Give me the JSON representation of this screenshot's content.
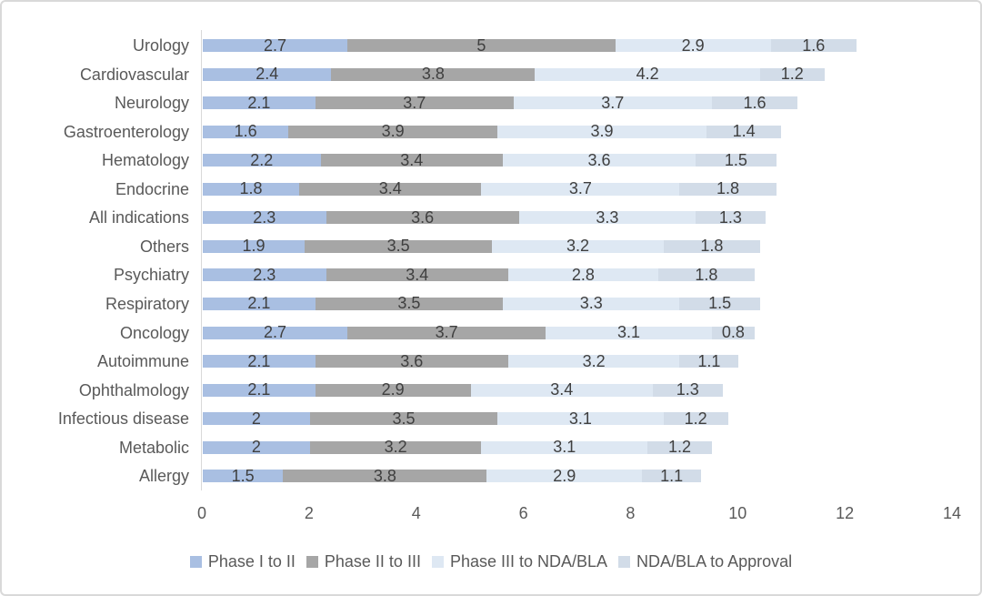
{
  "chart_data": {
    "type": "bar",
    "orientation": "horizontal",
    "stacked": true,
    "title": "",
    "xlabel": "",
    "ylabel": "",
    "xlim": [
      0,
      14
    ],
    "xticks": [
      0,
      2,
      4,
      6,
      8,
      10,
      12,
      14
    ],
    "grid": false,
    "legend_position": "bottom",
    "categories": [
      "Urology",
      "Cardiovascular",
      "Neurology",
      "Gastroenterology",
      "Hematology",
      "Endocrine",
      "All indications",
      "Others",
      "Psychiatry",
      "Respiratory",
      "Oncology",
      "Autoimmune",
      "Ophthalmology",
      "Infectious disease",
      "Metabolic",
      "Allergy"
    ],
    "series": [
      {
        "name": "Phase I to II",
        "color": "#a9bfe2",
        "values": [
          2.7,
          2.4,
          2.1,
          1.6,
          2.2,
          1.8,
          2.3,
          1.9,
          2.3,
          2.1,
          2.7,
          2.1,
          2.1,
          2,
          2,
          1.5
        ]
      },
      {
        "name": "Phase II to III",
        "color": "#a6a6a6",
        "values": [
          5,
          3.8,
          3.7,
          3.9,
          3.4,
          3.4,
          3.6,
          3.5,
          3.4,
          3.5,
          3.7,
          3.6,
          2.9,
          3.5,
          3.2,
          3.8
        ]
      },
      {
        "name": "Phase III to NDA/BLA",
        "color": "#dee8f3",
        "values": [
          2.9,
          4.2,
          3.7,
          3.9,
          3.6,
          3.7,
          3.3,
          3.2,
          2.8,
          3.3,
          3.1,
          3.2,
          3.4,
          3.1,
          3.1,
          2.9
        ]
      },
      {
        "name": "NDA/BLA to Approval",
        "color": "#d2dce8",
        "values": [
          1.6,
          1.2,
          1.6,
          1.4,
          1.5,
          1.8,
          1.3,
          1.8,
          1.8,
          1.5,
          0.8,
          1.1,
          1.3,
          1.2,
          1.2,
          1.1
        ]
      }
    ]
  }
}
